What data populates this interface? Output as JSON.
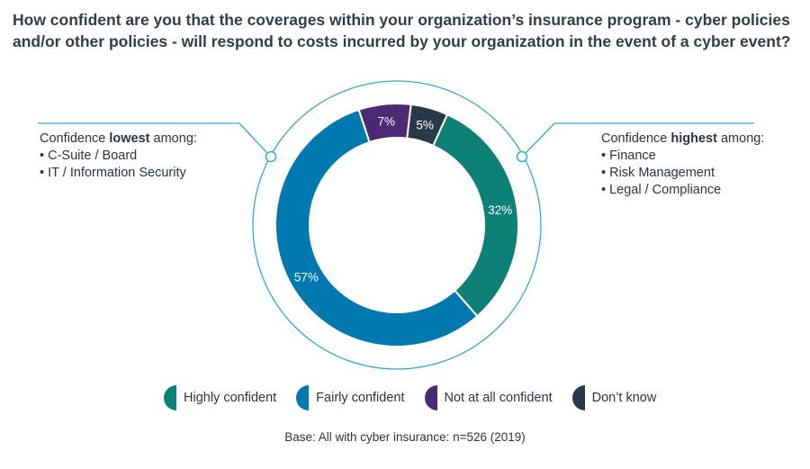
{
  "title": {
    "line1": "How confident are you that the coverages within your organization’s insurance program - cyber policies",
    "line2": "and/or other policies - will respond to costs incurred by your organization in the event of a cyber event?"
  },
  "callout_left": {
    "prefix": "Confidence ",
    "emphasis": "lowest",
    "suffix": " among:",
    "items": [
      "C-Suite / Board",
      "IT / Information Security"
    ]
  },
  "callout_right": {
    "prefix": "Confidence ",
    "emphasis": "highest",
    "suffix": " among:",
    "items": [
      "Finance",
      "Risk Management",
      "Legal / Compliance"
    ]
  },
  "colors": {
    "highly": "#0e8177",
    "fairly": "#0079b1",
    "not_at_all": "#4b2a73",
    "dont_know": "#2b3848",
    "outline": "#34a9d2"
  },
  "chart_data": {
    "type": "pie",
    "title": "",
    "donut": true,
    "slices": [
      {
        "label": "Highly confident",
        "value": 32,
        "display": "32%",
        "color": "#0e8177"
      },
      {
        "label": "Fairly confident",
        "value": 57,
        "display": "57%",
        "color": "#0079b1"
      },
      {
        "label": "Not at all confident",
        "value": 7,
        "display": "7%",
        "color": "#4b2a73"
      },
      {
        "label": "Don’t know",
        "value": 5,
        "display": "5%",
        "color": "#2b3848"
      }
    ],
    "legend_placement": "bottom"
  },
  "base_note": "Base: All with cyber insurance: n=526 (2019)"
}
